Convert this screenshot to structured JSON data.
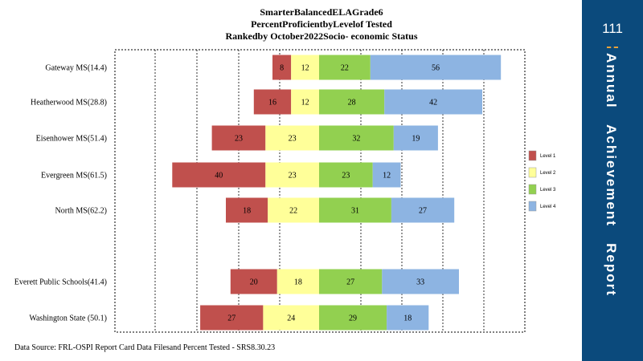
{
  "title_lines": [
    "SmarterBalancedELAGrade6",
    "PercentProficientbyLevelof Tested",
    "Rankedby October2022Socio- economic Status"
  ],
  "source_note": "Data Source: FRL-OSPI Report Card Data Filesand Percent  Tested - SRS8.30.23",
  "sidebar": {
    "page_number": "111",
    "title": "Annual   Achievement   Report"
  },
  "colors": {
    "level1": "#c0504d",
    "level2": "#ffff99",
    "level3": "#92d050",
    "level4": "#8db4e2",
    "sidebar": "#0b4a7c"
  },
  "chart_data": {
    "type": "bar",
    "orientation": "horizontal-diverging",
    "categories": [
      "Gateway MS(14.4)",
      "Heatherwood  MS(28.8)",
      "Eisenhower MS(51.4)",
      "Evergreen MS(61.5)",
      "North MS(62.2)",
      "",
      "Everett Public Schools(41.4)",
      "Washington State (50.1)"
    ],
    "series": [
      {
        "name": "Level 1",
        "values": [
          8,
          16,
          23,
          40,
          18,
          null,
          20,
          27
        ]
      },
      {
        "name": "Level 2",
        "values": [
          12,
          12,
          23,
          23,
          22,
          null,
          18,
          24
        ]
      },
      {
        "name": "Level 3",
        "values": [
          22,
          28,
          32,
          23,
          31,
          null,
          27,
          29
        ]
      },
      {
        "name": "Level 4",
        "values": [
          56,
          42,
          19,
          12,
          27,
          null,
          33,
          18
        ]
      }
    ],
    "xlim": [
      -80,
      100
    ],
    "grid": true,
    "legend_position": "right"
  }
}
